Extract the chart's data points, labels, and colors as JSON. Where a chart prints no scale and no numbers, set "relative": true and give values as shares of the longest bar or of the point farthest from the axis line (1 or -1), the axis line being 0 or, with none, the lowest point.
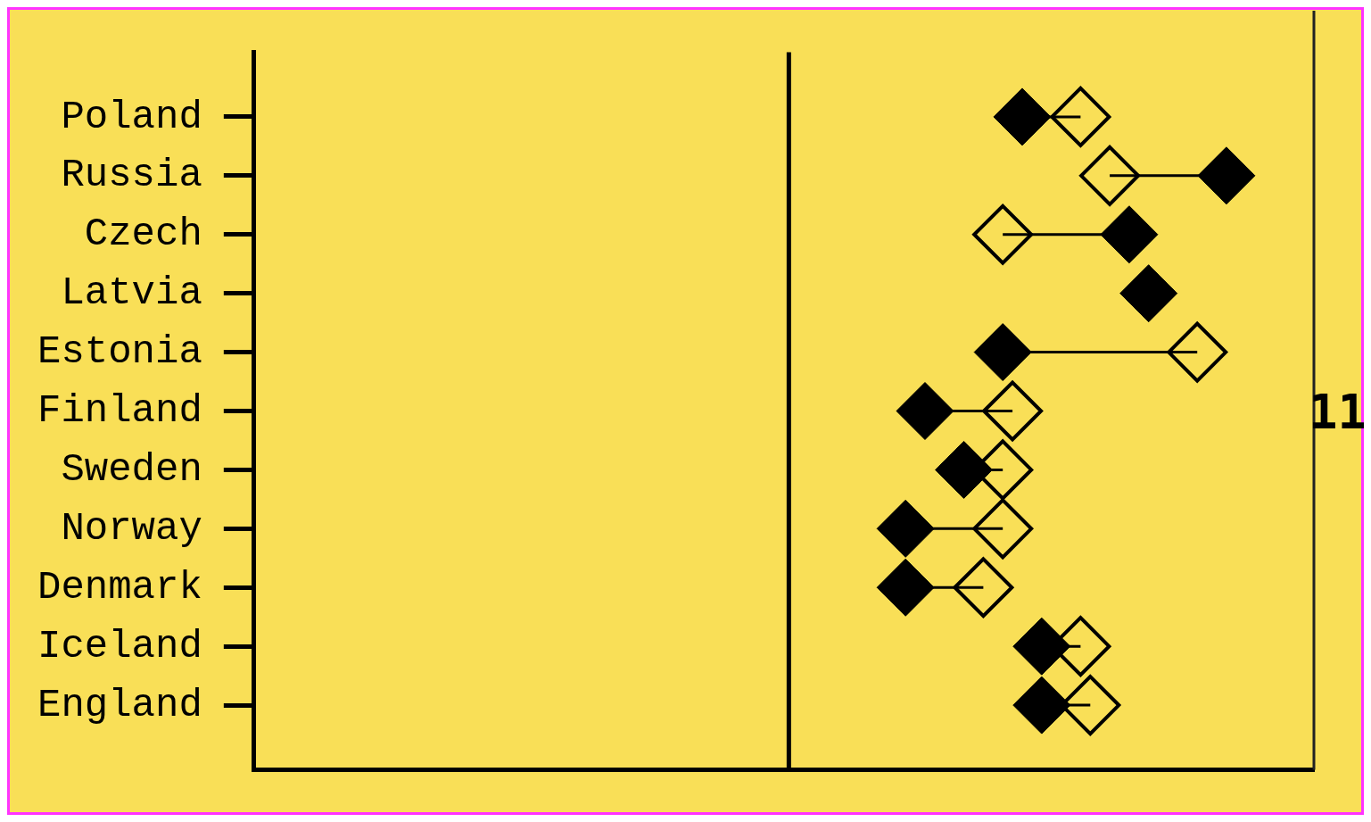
{
  "chart_data": {
    "type": "scatter",
    "orientation": "horizontal",
    "relative": true,
    "categories": [
      "Poland",
      "Russia",
      "Czech",
      "Latvia",
      "Estonia",
      "Finland",
      "Sweden",
      "Norway",
      "Denmark",
      "Iceland",
      "England"
    ],
    "series": [
      {
        "color": "#000000",
        "values": [
          0.79,
          1.0,
          0.9,
          0.92,
          0.77,
          0.69,
          0.73,
          0.67,
          0.67,
          0.81,
          0.81
        ]
      },
      {
        "color": "#000000",
        "values": [
          0.85,
          0.88,
          0.77,
          null,
          0.97,
          0.78,
          0.77,
          0.77,
          0.75,
          0.85,
          0.86
        ]
      }
    ],
    "marker": "diamond",
    "ref_lines": [
      {
        "axis": "x",
        "value": 0.55,
        "color": "#000000"
      }
    ],
    "annotations": [
      "11"
    ],
    "legend": false,
    "grid": false
  }
}
